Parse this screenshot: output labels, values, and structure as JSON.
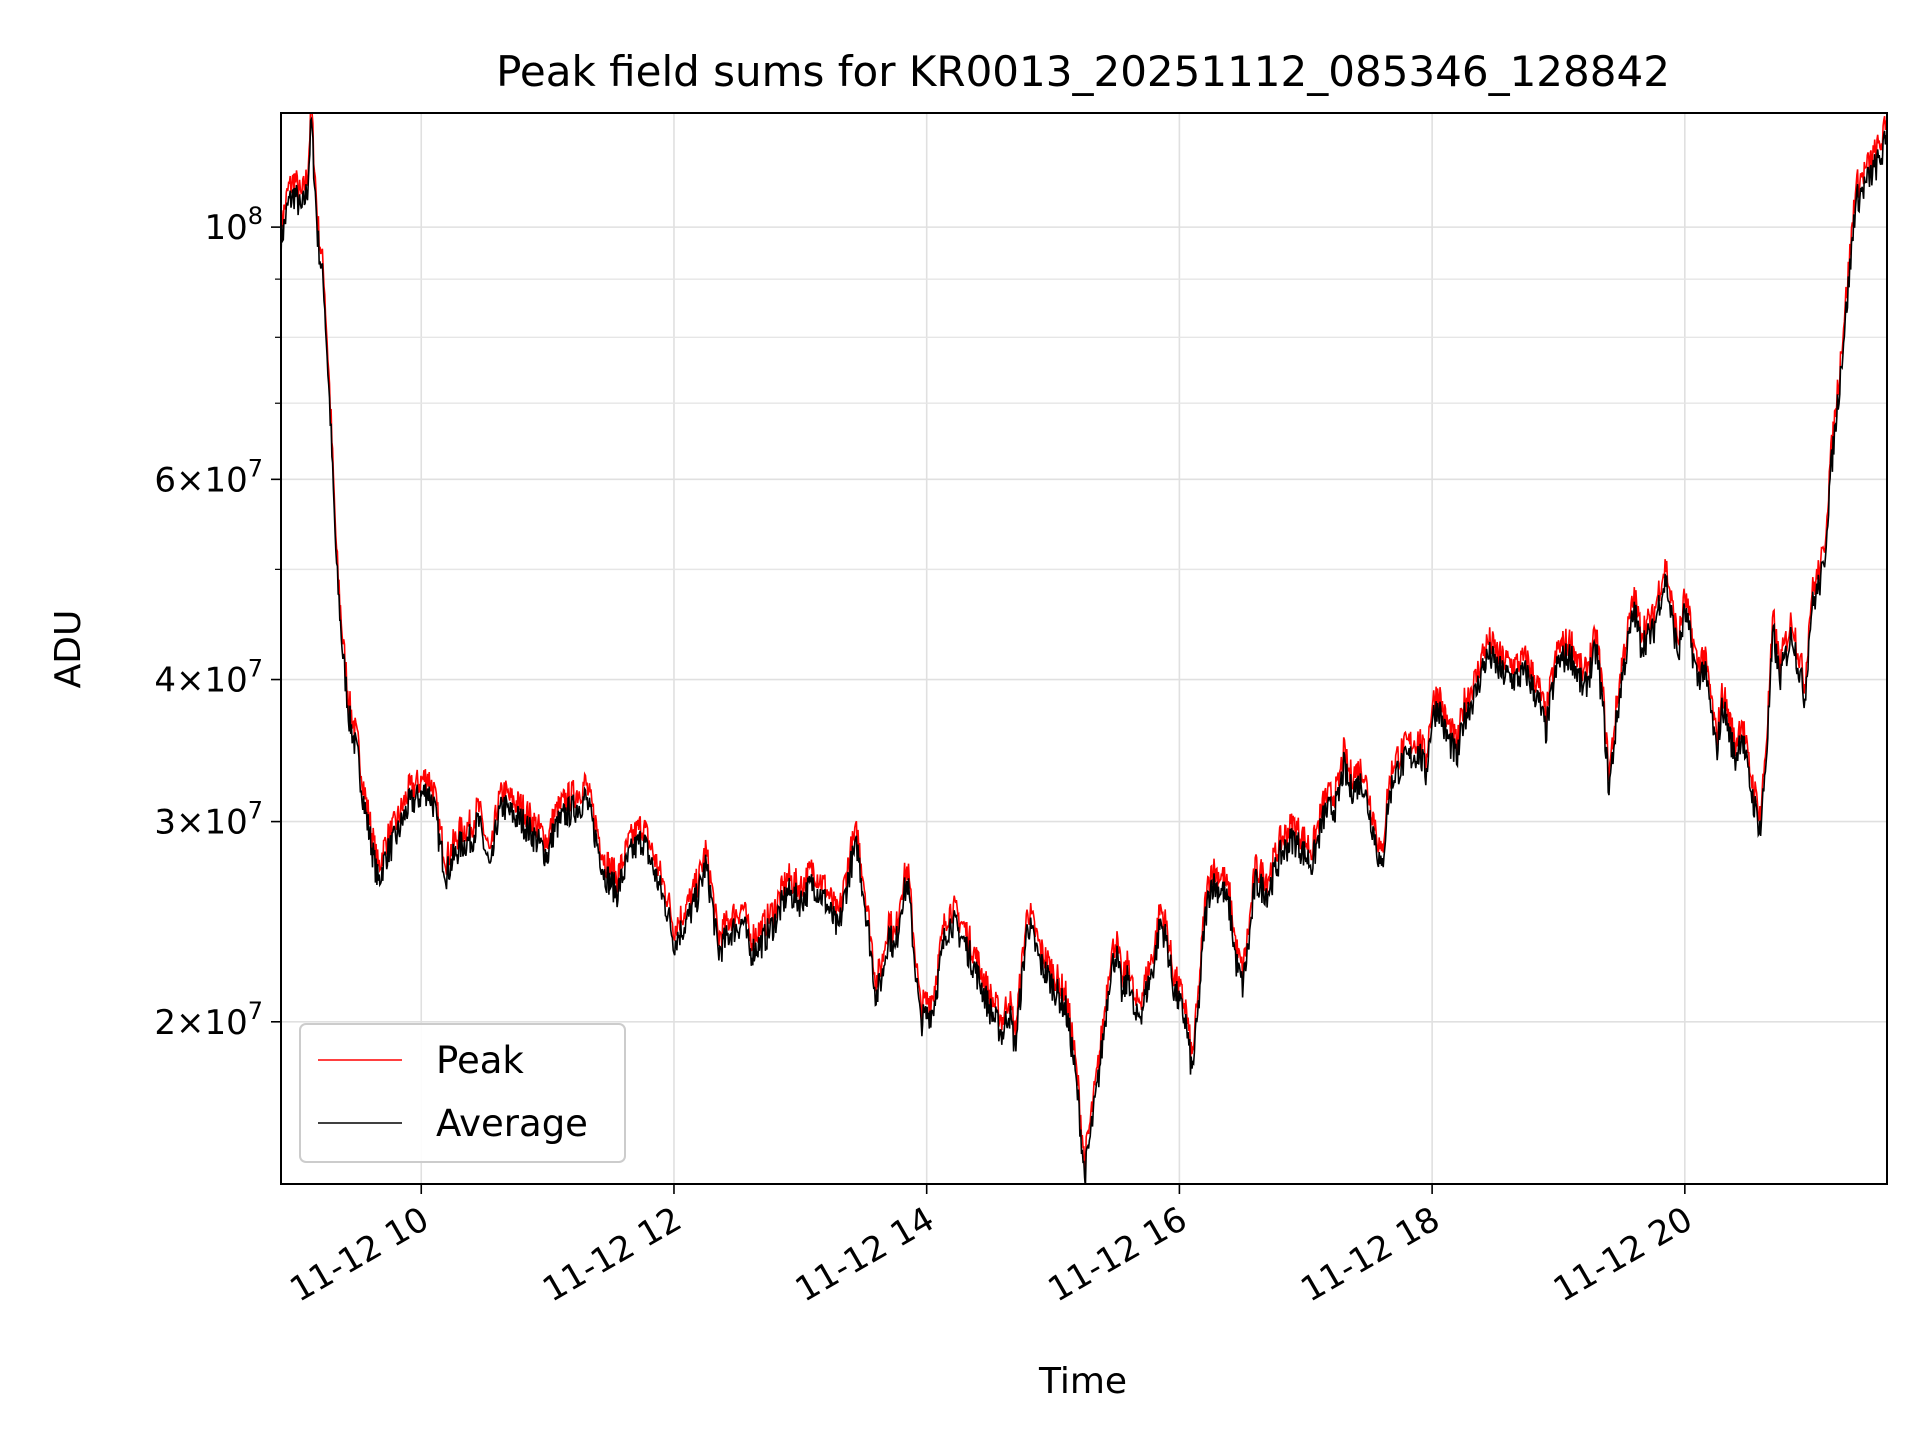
{
  "chart_data": {
    "type": "line",
    "title": "Peak field sums for KR0013_20251112_085346_128842",
    "xlabel": "Time",
    "ylabel": "ADU",
    "yscale": "log",
    "grid": true,
    "legend_placement": "lower-left",
    "x_unit": "hours (2025-11-12)",
    "xlim": [
      8.89,
      21.6
    ],
    "ylim": [
      14400000,
      126000000
    ],
    "x_ticks": [
      {
        "value": 10,
        "label": "11-12 10"
      },
      {
        "value": 12,
        "label": "11-12 12"
      },
      {
        "value": 14,
        "label": "11-12 14"
      },
      {
        "value": 16,
        "label": "11-12 16"
      },
      {
        "value": 18,
        "label": "11-12 18"
      },
      {
        "value": 20,
        "label": "11-12 20"
      }
    ],
    "y_ticks": [
      {
        "value": 20000000,
        "mant": "2",
        "exp": "7"
      },
      {
        "value": 30000000,
        "mant": "3",
        "exp": "7"
      },
      {
        "value": 40000000,
        "mant": "4",
        "exp": "7"
      },
      {
        "value": 60000000,
        "mant": "6",
        "exp": "7"
      },
      {
        "value": 100000000,
        "mant": "10",
        "exp": "8"
      }
    ],
    "y_minor_ticks": [
      50000000,
      70000000,
      80000000,
      90000000
    ],
    "series": [
      {
        "name": "Average",
        "color": "#000000",
        "points": [
          [
            8.89,
            97000000
          ],
          [
            8.95,
            105000000
          ],
          [
            9.0,
            107000000
          ],
          [
            9.05,
            103000000
          ],
          [
            9.1,
            108000000
          ],
          [
            9.13,
            124000000
          ],
          [
            9.18,
            98000000
          ],
          [
            9.23,
            88000000
          ],
          [
            9.28,
            68000000
          ],
          [
            9.33,
            50000000
          ],
          [
            9.38,
            42000000
          ],
          [
            9.43,
            37000000
          ],
          [
            9.5,
            34000000
          ],
          [
            9.55,
            31000000
          ],
          [
            9.62,
            28000000
          ],
          [
            9.66,
            26500000
          ],
          [
            9.72,
            28000000
          ],
          [
            9.8,
            29000000
          ],
          [
            9.9,
            31000000
          ],
          [
            9.98,
            31500000
          ],
          [
            10.05,
            32000000
          ],
          [
            10.1,
            31000000
          ],
          [
            10.15,
            28500000
          ],
          [
            10.2,
            27000000
          ],
          [
            10.3,
            28500000
          ],
          [
            10.4,
            29000000
          ],
          [
            10.45,
            30000000
          ],
          [
            10.5,
            28500000
          ],
          [
            10.55,
            27000000
          ],
          [
            10.6,
            30000000
          ],
          [
            10.65,
            31000000
          ],
          [
            10.7,
            30500000
          ],
          [
            10.8,
            30000000
          ],
          [
            10.9,
            29000000
          ],
          [
            11.0,
            28000000
          ],
          [
            11.05,
            29500000
          ],
          [
            11.15,
            30500000
          ],
          [
            11.25,
            31000000
          ],
          [
            11.3,
            31500000
          ],
          [
            11.35,
            30000000
          ],
          [
            11.45,
            27000000
          ],
          [
            11.55,
            26000000
          ],
          [
            11.65,
            28000000
          ],
          [
            11.75,
            29000000
          ],
          [
            11.85,
            27000000
          ],
          [
            11.95,
            25000000
          ],
          [
            12.0,
            23500000
          ],
          [
            12.1,
            24500000
          ],
          [
            12.2,
            26000000
          ],
          [
            12.25,
            27500000
          ],
          [
            12.3,
            25500000
          ],
          [
            12.35,
            23000000
          ],
          [
            12.45,
            24000000
          ],
          [
            12.55,
            24500000
          ],
          [
            12.6,
            23000000
          ],
          [
            12.7,
            23500000
          ],
          [
            12.8,
            24500000
          ],
          [
            12.9,
            26000000
          ],
          [
            13.0,
            25500000
          ],
          [
            13.1,
            26500000
          ],
          [
            13.2,
            25500000
          ],
          [
            13.3,
            24000000
          ],
          [
            13.4,
            27500000
          ],
          [
            13.45,
            28500000
          ],
          [
            13.5,
            26000000
          ],
          [
            13.55,
            23500000
          ],
          [
            13.6,
            21000000
          ],
          [
            13.65,
            22000000
          ],
          [
            13.7,
            24000000
          ],
          [
            13.75,
            23000000
          ],
          [
            13.8,
            25500000
          ],
          [
            13.85,
            26500000
          ],
          [
            13.9,
            23000000
          ],
          [
            13.95,
            20000000
          ],
          [
            14.05,
            20500000
          ],
          [
            14.15,
            24000000
          ],
          [
            14.2,
            24500000
          ],
          [
            14.3,
            23500000
          ],
          [
            14.4,
            22000000
          ],
          [
            14.5,
            20500000
          ],
          [
            14.6,
            19500000
          ],
          [
            14.65,
            20500000
          ],
          [
            14.7,
            19000000
          ],
          [
            14.8,
            24500000
          ],
          [
            14.9,
            22500000
          ],
          [
            15.0,
            21500000
          ],
          [
            15.1,
            20500000
          ],
          [
            15.15,
            19000000
          ],
          [
            15.2,
            17000000
          ],
          [
            15.25,
            14600000
          ],
          [
            15.3,
            16000000
          ],
          [
            15.35,
            17500000
          ],
          [
            15.4,
            19500000
          ],
          [
            15.45,
            22000000
          ],
          [
            15.5,
            23000000
          ],
          [
            15.55,
            21000000
          ],
          [
            15.6,
            22000000
          ],
          [
            15.65,
            20000000
          ],
          [
            15.7,
            20500000
          ],
          [
            15.8,
            22500000
          ],
          [
            15.85,
            24500000
          ],
          [
            15.9,
            23500000
          ],
          [
            15.95,
            21500000
          ],
          [
            16.05,
            20000000
          ],
          [
            16.1,
            18000000
          ],
          [
            16.15,
            20500000
          ],
          [
            16.2,
            24500000
          ],
          [
            16.25,
            26500000
          ],
          [
            16.35,
            26000000
          ],
          [
            16.4,
            25000000
          ],
          [
            16.45,
            22500000
          ],
          [
            16.5,
            21500000
          ],
          [
            16.55,
            23500000
          ],
          [
            16.6,
            26500000
          ],
          [
            16.7,
            26000000
          ],
          [
            16.8,
            28000000
          ],
          [
            16.9,
            29000000
          ],
          [
            17.0,
            28000000
          ],
          [
            17.05,
            27500000
          ],
          [
            17.1,
            29000000
          ],
          [
            17.15,
            30500000
          ],
          [
            17.25,
            31000000
          ],
          [
            17.3,
            33500000
          ],
          [
            17.35,
            32000000
          ],
          [
            17.45,
            32500000
          ],
          [
            17.55,
            29000000
          ],
          [
            17.6,
            27000000
          ],
          [
            17.65,
            31000000
          ],
          [
            17.7,
            33000000
          ],
          [
            17.8,
            34000000
          ],
          [
            17.9,
            34500000
          ],
          [
            17.95,
            33000000
          ],
          [
            18.0,
            37000000
          ],
          [
            18.05,
            38000000
          ],
          [
            18.1,
            36000000
          ],
          [
            18.2,
            34000000
          ],
          [
            18.25,
            37000000
          ],
          [
            18.35,
            39000000
          ],
          [
            18.4,
            41000000
          ],
          [
            18.45,
            42000000
          ],
          [
            18.55,
            40500000
          ],
          [
            18.65,
            40000000
          ],
          [
            18.75,
            40500000
          ],
          [
            18.85,
            38000000
          ],
          [
            18.9,
            36000000
          ],
          [
            18.95,
            39000000
          ],
          [
            19.0,
            41500000
          ],
          [
            19.1,
            42000000
          ],
          [
            19.2,
            39000000
          ],
          [
            19.3,
            42500000
          ],
          [
            19.35,
            38000000
          ],
          [
            19.4,
            32000000
          ],
          [
            19.45,
            36000000
          ],
          [
            19.5,
            40000000
          ],
          [
            19.55,
            43000000
          ],
          [
            19.6,
            46000000
          ],
          [
            19.65,
            43000000
          ],
          [
            19.75,
            44000000
          ],
          [
            19.8,
            47000000
          ],
          [
            19.85,
            49000000
          ],
          [
            19.9,
            45000000
          ],
          [
            19.95,
            42000000
          ],
          [
            20.0,
            46000000
          ],
          [
            20.05,
            43000000
          ],
          [
            20.1,
            40000000
          ],
          [
            20.15,
            41000000
          ],
          [
            20.2,
            38000000
          ],
          [
            20.25,
            34500000
          ],
          [
            20.3,
            38000000
          ],
          [
            20.35,
            36000000
          ],
          [
            20.4,
            34000000
          ],
          [
            20.45,
            36000000
          ],
          [
            20.5,
            33000000
          ],
          [
            20.55,
            31000000
          ],
          [
            20.6,
            29500000
          ],
          [
            20.65,
            35000000
          ],
          [
            20.7,
            44000000
          ],
          [
            20.75,
            40000000
          ],
          [
            20.8,
            42000000
          ],
          [
            20.85,
            44000000
          ],
          [
            20.9,
            41000000
          ],
          [
            20.95,
            38500000
          ],
          [
            21.0,
            46000000
          ],
          [
            21.05,
            48000000
          ],
          [
            21.1,
            50000000
          ],
          [
            21.15,
            60000000
          ],
          [
            21.22,
            72000000
          ],
          [
            21.3,
            90000000
          ],
          [
            21.35,
            105000000
          ],
          [
            21.45,
            110000000
          ],
          [
            21.55,
            115000000
          ],
          [
            21.6,
            120000000
          ]
        ]
      },
      {
        "name": "Peak",
        "color": "#ff0000",
        "multiplier": 1.03
      }
    ]
  }
}
